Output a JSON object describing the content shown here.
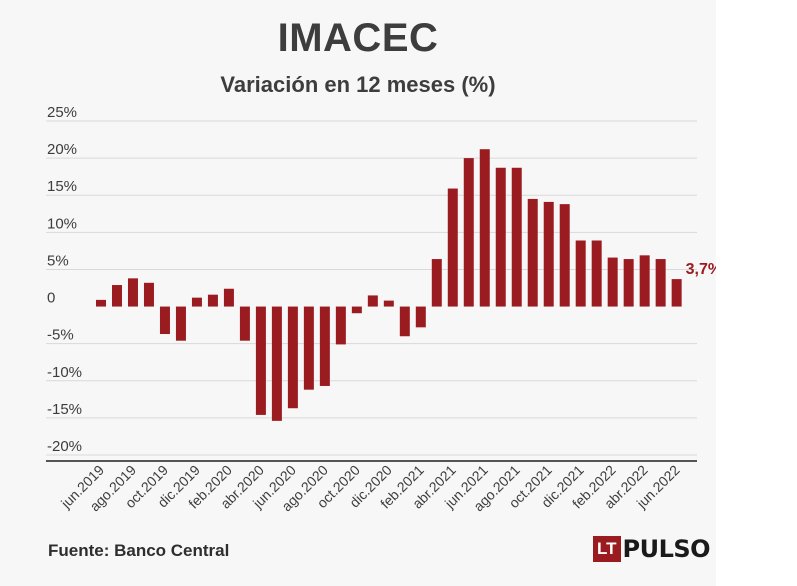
{
  "header": {
    "title": "IMACEC",
    "subtitle": "Variación en 12 meses (%)"
  },
  "footer": {
    "source": "Fuente: Banco Central",
    "logo_text": "LT",
    "logo_word": "PULSO"
  },
  "colors": {
    "bar": "#9b1c20",
    "grid": "#d9d9d9",
    "text": "#3d3d3d"
  },
  "chart_data": {
    "type": "bar",
    "ylim": [
      -20,
      25
    ],
    "yticks": [
      25,
      20,
      15,
      10,
      5,
      0,
      -5,
      -10,
      -15,
      -20
    ],
    "ytick_labels": [
      "25%",
      "20%",
      "15%",
      "10%",
      "5%",
      "0",
      "-5%",
      "-10%",
      "-15%",
      "-20%"
    ],
    "grid": true,
    "categories": [
      "jun.2019",
      "jul.2019",
      "ago.2019",
      "sep.2019",
      "oct.2019",
      "nov.2019",
      "dic.2019",
      "ene.2020",
      "feb.2020",
      "mar.2020",
      "abr.2020",
      "may.2020",
      "jun.2020",
      "jul.2020",
      "ago.2020",
      "sep.2020",
      "oct.2020",
      "nov.2020",
      "dic.2020",
      "ene.2021",
      "feb.2021",
      "mar.2021",
      "abr.2021",
      "may.2021",
      "jun.2021",
      "jul.2021",
      "ago.2021",
      "sep.2021",
      "oct.2021",
      "nov.2021",
      "dic.2021",
      "ene.2022",
      "feb.2022",
      "mar.2022",
      "abr.2022",
      "may.2022",
      "jun.2022"
    ],
    "xtick_labels": [
      "jun.2019",
      "ago.2019",
      "oct.2019",
      "dic.2019",
      "feb.2020",
      "abr.2020",
      "jun.2020",
      "ago.2020",
      "oct.2020",
      "dic.2020",
      "feb.2021",
      "abr.2021",
      "jun.2021",
      "ago.2021",
      "oct.2021",
      "dic.2021",
      "feb.2022",
      "abr.2022",
      "jun.2022"
    ],
    "values": [
      0.9,
      2.9,
      3.8,
      3.2,
      -3.7,
      -4.6,
      1.2,
      1.6,
      2.4,
      -4.6,
      -14.6,
      -15.4,
      -13.7,
      -11.2,
      -10.7,
      -5.1,
      -0.9,
      1.5,
      0.8,
      -4.0,
      -2.8,
      6.4,
      15.9,
      20.0,
      21.2,
      18.7,
      18.7,
      14.5,
      14.1,
      13.8,
      8.9,
      8.9,
      6.6,
      6.4,
      6.9,
      6.4,
      3.7
    ],
    "annotation": {
      "index": 36,
      "text": "3,7%"
    }
  }
}
